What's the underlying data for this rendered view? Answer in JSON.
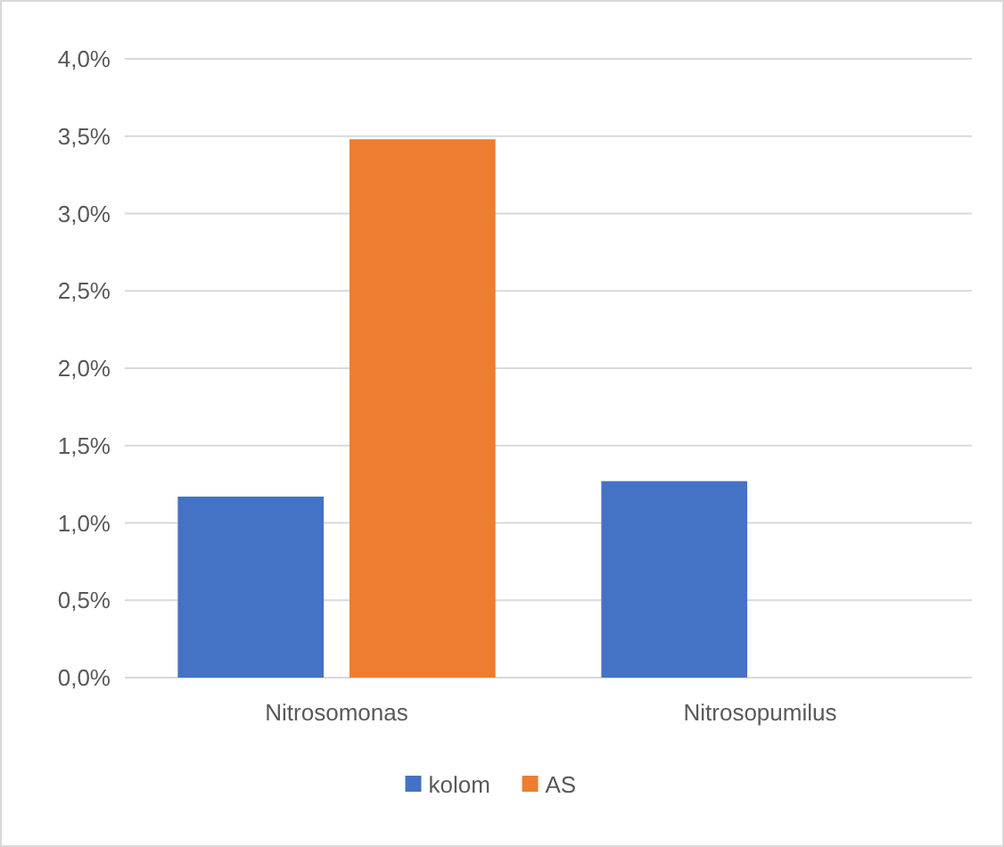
{
  "chart_data": {
    "type": "bar",
    "categories": [
      "Nitrosomonas",
      "Nitrosopumilus"
    ],
    "series": [
      {
        "name": "kolom",
        "color": "#4472c4",
        "values": [
          1.17,
          1.27
        ]
      },
      {
        "name": "AS",
        "color": "#ed7d31",
        "values": [
          3.48,
          0
        ]
      }
    ],
    "ylim": [
      0,
      4
    ],
    "yticks": [
      {
        "value": 0,
        "label": "0,0%"
      },
      {
        "value": 0.5,
        "label": "0,5%"
      },
      {
        "value": 1,
        "label": "1,0%"
      },
      {
        "value": 1.5,
        "label": "1,5%"
      },
      {
        "value": 2,
        "label": "2,0%"
      },
      {
        "value": 2.5,
        "label": "2,5%"
      },
      {
        "value": 3,
        "label": "3,0%"
      },
      {
        "value": 3.5,
        "label": "3,5%"
      },
      {
        "value": 4,
        "label": "4,0%"
      }
    ],
    "grid": "y",
    "legend": "bottom"
  }
}
